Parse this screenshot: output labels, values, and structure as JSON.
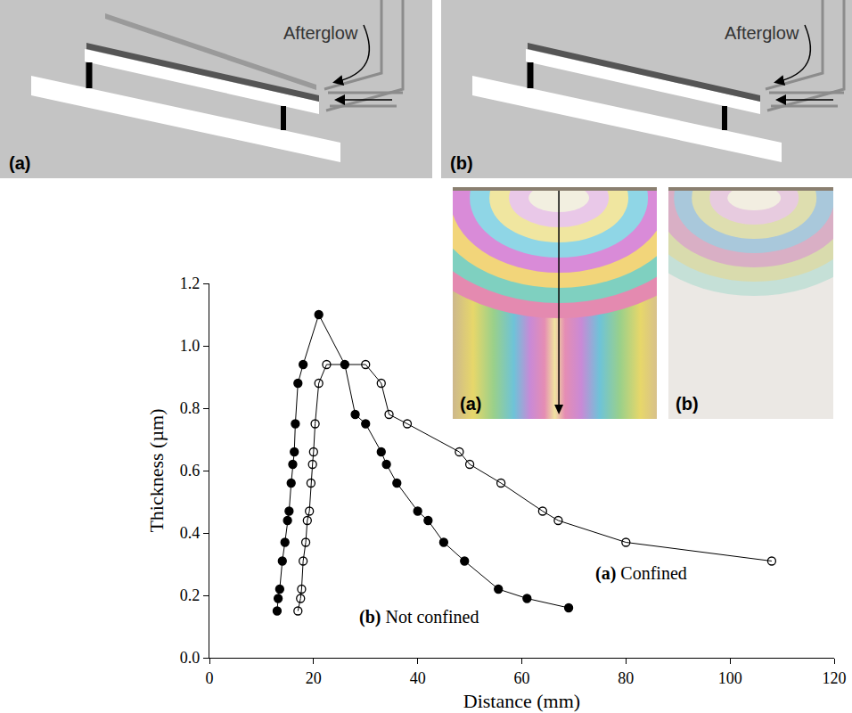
{
  "schematics": [
    {
      "label": "(a)",
      "text": "Afterglow"
    },
    {
      "label": "(b)",
      "text": "Afterglow"
    }
  ],
  "photos": [
    {
      "label": "(a)"
    },
    {
      "label": "(b)"
    }
  ],
  "chart_data": {
    "type": "line",
    "xlabel": "Distance (mm)",
    "ylabel": "Thickness (µm)",
    "xlim": [
      0,
      120
    ],
    "xticks": [
      0,
      20,
      40,
      60,
      80,
      100,
      120
    ],
    "ylim": [
      0,
      1.2
    ],
    "yticks": [
      {
        "value": 0,
        "label": "0.0"
      },
      0.2,
      0.4,
      0.6,
      0.8,
      {
        "value": 1,
        "label": "1.0"
      },
      1.2
    ],
    "grid": false,
    "series": [
      {
        "name": "(a) Confined",
        "color": "#000000",
        "marker": "circle-open",
        "x": [
          17,
          17.5,
          17.7,
          18,
          18.5,
          18.8,
          19.2,
          19.5,
          19.8,
          20,
          20.3,
          21,
          22.5,
          30,
          33,
          34.5,
          38,
          48,
          50,
          56,
          64,
          67,
          80,
          108
        ],
        "values": [
          0.15,
          0.19,
          0.22,
          0.31,
          0.37,
          0.44,
          0.47,
          0.56,
          0.62,
          0.66,
          0.75,
          0.88,
          0.94,
          0.94,
          0.88,
          0.78,
          0.75,
          0.66,
          0.62,
          0.56,
          0.47,
          0.44,
          0.37,
          0.31
        ]
      },
      {
        "name": "(b) Not confined",
        "color": "#000000",
        "marker": "circle",
        "x": [
          13,
          13.2,
          13.5,
          14,
          14.5,
          15,
          15.3,
          15.7,
          16,
          16.3,
          16.5,
          17,
          18,
          21,
          26,
          28,
          30,
          33,
          34,
          36,
          40,
          42,
          45,
          49,
          55.5,
          61,
          69
        ],
        "values": [
          0.15,
          0.19,
          0.22,
          0.31,
          0.37,
          0.44,
          0.47,
          0.56,
          0.62,
          0.66,
          0.75,
          0.88,
          0.94,
          1.1,
          0.94,
          0.78,
          0.75,
          0.66,
          0.62,
          0.56,
          0.47,
          0.44,
          0.37,
          0.31,
          0.22,
          0.19,
          0.16
        ]
      }
    ]
  }
}
